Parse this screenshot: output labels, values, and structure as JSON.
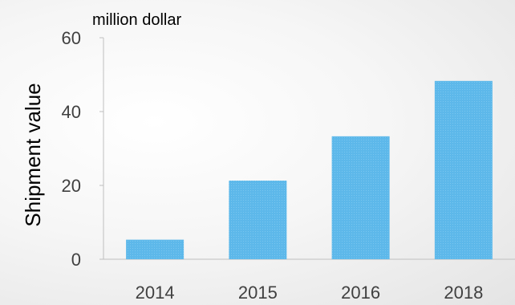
{
  "chart_data": {
    "type": "bar",
    "categories": [
      "2014",
      "2015",
      "2016",
      "2018"
    ],
    "values": [
      5.3,
      21.3,
      33.3,
      48.3
    ],
    "title": "",
    "unit_label": "million dollar",
    "xlabel": "",
    "ylabel": "Shipment value",
    "ylim": [
      0,
      60
    ],
    "yticks": [
      0,
      20,
      40,
      60
    ],
    "grid": false,
    "bar_color": "#5db8ea",
    "axis_color": "#bfbfbf"
  }
}
